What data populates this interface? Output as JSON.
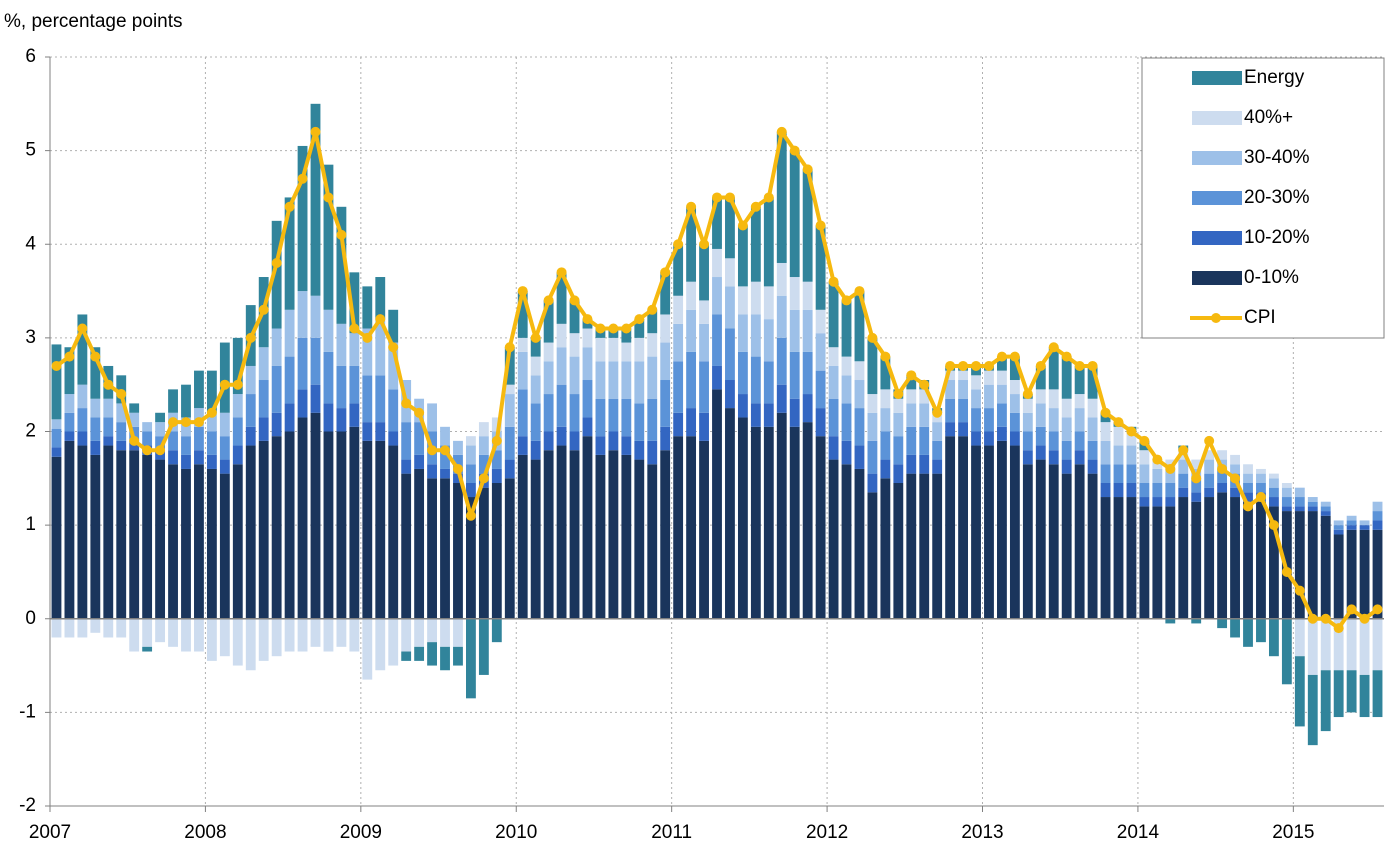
{
  "chart_data": {
    "type": "stacked_bar_line",
    "y_label": "%, percentage points",
    "categories": [
      "2007",
      null,
      null,
      null,
      null,
      null,
      null,
      null,
      null,
      null,
      null,
      null,
      "2008",
      null,
      null,
      null,
      null,
      null,
      null,
      null,
      null,
      null,
      null,
      null,
      "2009",
      null,
      null,
      null,
      null,
      null,
      null,
      null,
      null,
      null,
      null,
      null,
      "2010",
      null,
      null,
      null,
      null,
      null,
      null,
      null,
      null,
      null,
      null,
      null,
      "2011",
      null,
      null,
      null,
      null,
      null,
      null,
      null,
      null,
      null,
      null,
      null,
      "2012",
      null,
      null,
      null,
      null,
      null,
      null,
      null,
      null,
      null,
      null,
      null,
      "2013",
      null,
      null,
      null,
      null,
      null,
      null,
      null,
      null,
      null,
      null,
      null,
      "2014",
      null,
      null,
      null,
      null,
      null,
      null,
      null,
      null,
      null,
      null,
      null,
      "2015",
      null,
      null,
      null,
      null,
      null,
      null
    ],
    "ylim": [
      -2,
      6
    ],
    "yticks": [
      -2,
      -1,
      0,
      1,
      2,
      3,
      4,
      5,
      6
    ],
    "grid": true,
    "legend": "top-right",
    "series": [
      {
        "name": "0-10%",
        "color": "#1a355c",
        "values": [
          1.73,
          1.9,
          1.85,
          1.75,
          1.85,
          1.8,
          1.8,
          1.75,
          1.7,
          1.65,
          1.6,
          1.65,
          1.6,
          1.55,
          1.65,
          1.85,
          1.9,
          1.95,
          2.0,
          2.15,
          2.2,
          2.0,
          2.0,
          2.05,
          1.9,
          1.9,
          1.85,
          1.55,
          1.6,
          1.5,
          1.5,
          1.45,
          1.3,
          1.4,
          1.45,
          1.5,
          1.75,
          1.7,
          1.8,
          1.85,
          1.8,
          1.95,
          1.75,
          1.8,
          1.75,
          1.7,
          1.65,
          1.8,
          1.95,
          1.95,
          1.9,
          2.45,
          2.25,
          2.15,
          2.05,
          2.05,
          2.2,
          2.05,
          2.1,
          1.95,
          1.7,
          1.65,
          1.6,
          1.35,
          1.5,
          1.45,
          1.55,
          1.55,
          1.55,
          1.95,
          1.95,
          1.85,
          1.85,
          1.9,
          1.85,
          1.65,
          1.7,
          1.65,
          1.55,
          1.65,
          1.55,
          1.3,
          1.3,
          1.3,
          1.2,
          1.2,
          1.2,
          1.3,
          1.25,
          1.3,
          1.35,
          1.3,
          1.25,
          1.25,
          1.2,
          1.15,
          1.15,
          1.15,
          1.1,
          0.9,
          0.95,
          0.95,
          0.95
        ]
      },
      {
        "name": "10-20%",
        "color": "#3366c2",
        "values": [
          0.1,
          0.1,
          0.15,
          0.15,
          0.1,
          0.1,
          0.1,
          0.1,
          0.1,
          0.15,
          0.15,
          0.15,
          0.15,
          0.15,
          0.2,
          0.2,
          0.25,
          0.25,
          0.3,
          0.3,
          0.3,
          0.3,
          0.25,
          0.25,
          0.2,
          0.2,
          0.15,
          0.15,
          0.15,
          0.15,
          0.1,
          0.1,
          0.15,
          0.15,
          0.15,
          0.2,
          0.2,
          0.2,
          0.2,
          0.2,
          0.2,
          0.2,
          0.2,
          0.2,
          0.2,
          0.2,
          0.25,
          0.25,
          0.25,
          0.3,
          0.3,
          0.25,
          0.3,
          0.25,
          0.25,
          0.25,
          0.3,
          0.3,
          0.3,
          0.3,
          0.25,
          0.25,
          0.25,
          0.2,
          0.2,
          0.2,
          0.2,
          0.2,
          0.15,
          0.15,
          0.15,
          0.15,
          0.15,
          0.15,
          0.15,
          0.15,
          0.15,
          0.15,
          0.15,
          0.15,
          0.15,
          0.15,
          0.15,
          0.15,
          0.1,
          0.1,
          0.1,
          0.1,
          0.1,
          0.1,
          0.1,
          0.1,
          0.1,
          0.1,
          0.1,
          0.05,
          0.05,
          0.05,
          0.05,
          0.05,
          0.05,
          0.05,
          0.1
        ]
      },
      {
        "name": "20-30%",
        "color": "#5b93d8",
        "values": [
          0.2,
          0.2,
          0.25,
          0.25,
          0.2,
          0.2,
          0.15,
          0.15,
          0.15,
          0.2,
          0.2,
          0.25,
          0.25,
          0.25,
          0.3,
          0.35,
          0.4,
          0.5,
          0.5,
          0.55,
          0.5,
          0.55,
          0.45,
          0.4,
          0.5,
          0.5,
          0.45,
          0.4,
          0.35,
          0.35,
          0.25,
          0.2,
          0.2,
          0.2,
          0.2,
          0.35,
          0.5,
          0.4,
          0.4,
          0.45,
          0.4,
          0.4,
          0.4,
          0.35,
          0.4,
          0.4,
          0.45,
          0.5,
          0.55,
          0.6,
          0.55,
          0.55,
          0.55,
          0.45,
          0.5,
          0.45,
          0.5,
          0.5,
          0.45,
          0.4,
          0.4,
          0.4,
          0.4,
          0.35,
          0.3,
          0.3,
          0.3,
          0.3,
          0.2,
          0.25,
          0.25,
          0.25,
          0.25,
          0.25,
          0.2,
          0.2,
          0.2,
          0.2,
          0.2,
          0.2,
          0.2,
          0.2,
          0.2,
          0.2,
          0.15,
          0.15,
          0.15,
          0.15,
          0.15,
          0.15,
          0.15,
          0.15,
          0.1,
          0.1,
          0.1,
          0.1,
          0.1,
          0.05,
          0.05,
          0.05,
          0.05,
          0,
          0.1
        ]
      },
      {
        "name": "30-40%",
        "color": "#9dc0e8",
        "values": [
          0.1,
          0.2,
          0.25,
          0.2,
          0.2,
          0.2,
          0.15,
          0.1,
          0.15,
          0.2,
          0.2,
          0.2,
          0.2,
          0.25,
          0.25,
          0.3,
          0.35,
          0.4,
          0.5,
          0.5,
          0.45,
          0.45,
          0.45,
          0.35,
          0.5,
          0.6,
          0.5,
          0.45,
          0.25,
          0.3,
          0.2,
          0.15,
          0.2,
          0.2,
          0.2,
          0.35,
          0.4,
          0.3,
          0.35,
          0.4,
          0.4,
          0.35,
          0.4,
          0.4,
          0.4,
          0.45,
          0.45,
          0.4,
          0.4,
          0.45,
          0.4,
          0.4,
          0.45,
          0.4,
          0.45,
          0.45,
          0.45,
          0.45,
          0.45,
          0.4,
          0.35,
          0.3,
          0.3,
          0.3,
          0.25,
          0.25,
          0.25,
          0.25,
          0.2,
          0.2,
          0.2,
          0.2,
          0.25,
          0.2,
          0.2,
          0.2,
          0.25,
          0.25,
          0.25,
          0.25,
          0.25,
          0.25,
          0.2,
          0.2,
          0.2,
          0.15,
          0.15,
          0.15,
          0.1,
          0.15,
          0.1,
          0.1,
          0.1,
          0.1,
          0.1,
          0.1,
          0.1,
          0.05,
          0.05,
          0.05,
          0.05,
          0.05,
          0.1
        ]
      },
      {
        "name": "40%+",
        "color": "#cddcef",
        "values": [
          -0.2,
          -0.2,
          -0.2,
          -0.15,
          -0.2,
          -0.2,
          -0.35,
          -0.3,
          -0.25,
          -0.3,
          -0.35,
          -0.35,
          -0.45,
          -0.4,
          -0.5,
          -0.55,
          -0.45,
          -0.4,
          -0.35,
          -0.35,
          -0.3,
          -0.35,
          -0.3,
          -0.35,
          -0.65,
          -0.55,
          -0.5,
          -0.35,
          -0.3,
          -0.25,
          -0.3,
          -0.3,
          0.1,
          0.15,
          0.15,
          0.1,
          0.15,
          0.2,
          0.2,
          0.25,
          0.25,
          0.2,
          0.25,
          0.25,
          0.2,
          0.25,
          0.25,
          0.3,
          0.3,
          0.3,
          0.25,
          0.3,
          0.3,
          0.3,
          0.35,
          0.35,
          0.35,
          0.35,
          0.3,
          0.25,
          0.2,
          0.2,
          0.2,
          0.2,
          0.2,
          0.15,
          0.15,
          0.15,
          0.1,
          0.1,
          0.1,
          0.15,
          0.15,
          0.15,
          0.15,
          0.15,
          0.15,
          0.2,
          0.2,
          0.15,
          0.2,
          0.2,
          0.2,
          0.15,
          0.15,
          0.1,
          0.1,
          0.1,
          0.1,
          0.1,
          0.1,
          0.1,
          0.1,
          0.05,
          0.05,
          0.05,
          -0.4,
          -0.6,
          -0.55,
          -0.55,
          -0.55,
          -0.6,
          -0.55
        ]
      },
      {
        "name": "Energy",
        "color": "#31849b",
        "values": [
          0.8,
          0.5,
          0.75,
          0.55,
          0.35,
          0.3,
          0.1,
          -0.05,
          0.1,
          0.25,
          0.35,
          0.4,
          0.45,
          0.75,
          0.6,
          0.65,
          0.75,
          1.15,
          1.2,
          1.55,
          2.05,
          1.55,
          1.25,
          0.65,
          0.45,
          0.45,
          0.35,
          -0.1,
          -0.15,
          -0.25,
          -0.25,
          -0.2,
          -0.85,
          -0.6,
          -0.25,
          0.4,
          0.5,
          0.2,
          0.45,
          0.55,
          0.35,
          0.1,
          0.1,
          0.1,
          0.15,
          0.2,
          0.25,
          0.45,
          0.55,
          0.8,
          0.6,
          0.55,
          0.65,
          0.65,
          0.8,
          0.95,
          1.4,
          1.35,
          1.2,
          0.9,
          0.7,
          0.6,
          0.75,
          0.6,
          0.35,
          0.1,
          0.15,
          0.1,
          0.05,
          0.05,
          0.05,
          0.1,
          0.05,
          0.15,
          0.25,
          0.05,
          0.25,
          0.45,
          0.45,
          0.3,
          0.35,
          0.1,
          0.05,
          0.05,
          0.1,
          0,
          -0.05,
          0.05,
          -0.05,
          0,
          -0.1,
          -0.2,
          -0.3,
          -0.25,
          -0.4,
          -0.7,
          -0.75,
          -0.75,
          -0.65,
          -0.5,
          -0.45,
          -0.45,
          -0.5
        ]
      },
      {
        "name": "CPI",
        "type": "line",
        "color": "#f6b90f",
        "values": [
          2.7,
          2.8,
          3.1,
          2.8,
          2.5,
          2.4,
          1.9,
          1.8,
          1.8,
          2.1,
          2.1,
          2.1,
          2.2,
          2.5,
          2.5,
          3.0,
          3.3,
          3.8,
          4.4,
          4.7,
          5.2,
          4.5,
          4.1,
          3.1,
          3.0,
          3.2,
          2.9,
          2.3,
          2.2,
          1.8,
          1.8,
          1.6,
          1.1,
          1.5,
          1.9,
          2.9,
          3.5,
          3.0,
          3.4,
          3.7,
          3.4,
          3.2,
          3.1,
          3.1,
          3.1,
          3.2,
          3.3,
          3.7,
          4.0,
          4.4,
          4.0,
          4.5,
          4.5,
          4.2,
          4.4,
          4.5,
          5.2,
          5.0,
          4.8,
          4.2,
          3.6,
          3.4,
          3.5,
          3.0,
          2.8,
          2.4,
          2.6,
          2.5,
          2.2,
          2.7,
          2.7,
          2.7,
          2.7,
          2.8,
          2.8,
          2.4,
          2.7,
          2.9,
          2.8,
          2.7,
          2.7,
          2.2,
          2.1,
          2.0,
          1.9,
          1.7,
          1.6,
          1.8,
          1.5,
          1.9,
          1.6,
          1.5,
          1.2,
          1.3,
          1.0,
          0.5,
          0.3,
          0,
          0,
          -0.1,
          0.1,
          0,
          0.1
        ]
      }
    ]
  }
}
